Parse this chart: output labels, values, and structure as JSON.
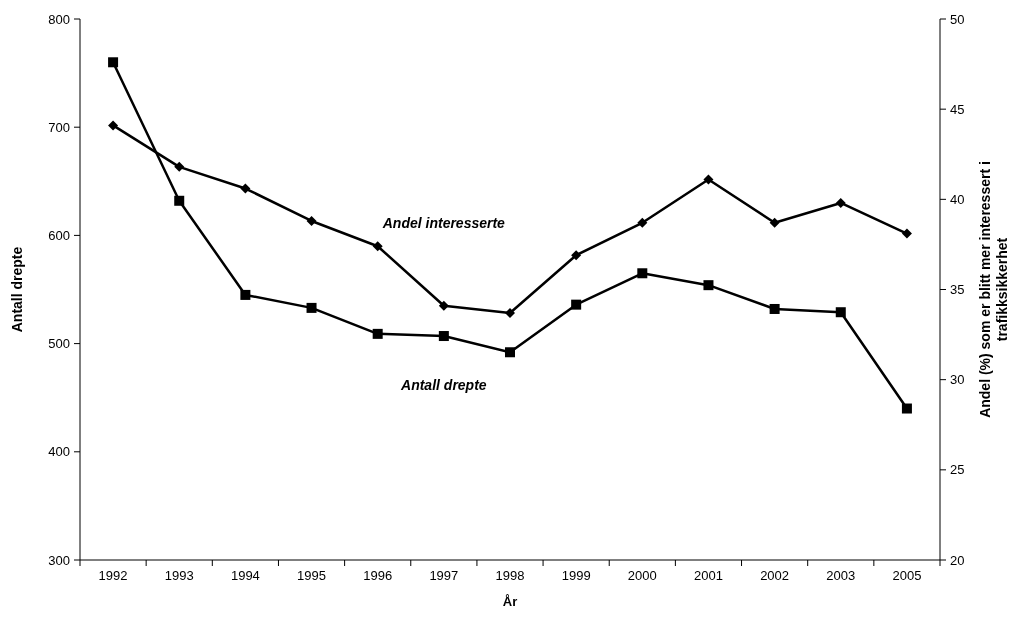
{
  "chart_data": {
    "type": "line",
    "xlabel": "År",
    "ylabel": "Antall drepte",
    "y2label": "Andel (%) som er blitt mer interessert i trafikksikkerhet",
    "categories": [
      "1992",
      "1993",
      "1994",
      "1995",
      "1996",
      "1997",
      "1998",
      "1999",
      "2000",
      "2001",
      "2002",
      "2003",
      "2005"
    ],
    "series": [
      {
        "name": "Antall drepte",
        "color": "#000000",
        "marker": "square",
        "values": [
          760,
          632,
          545,
          533,
          509,
          507,
          492,
          536,
          565,
          554,
          532,
          529,
          440
        ]
      },
      {
        "name": "Andel interesserte",
        "color": "#000000",
        "marker": "diamond",
        "axis": "y2",
        "values": [
          44.1,
          41.8,
          40.6,
          38.8,
          37.4,
          34.1,
          33.7,
          36.9,
          38.7,
          41.1,
          38.7,
          39.8,
          38.1
        ]
      }
    ],
    "ylim": [
      300,
      800
    ],
    "yticks": [
      300,
      400,
      500,
      600,
      700,
      800
    ],
    "y2lim": [
      20,
      50
    ],
    "y2ticks": [
      20,
      25,
      30,
      35,
      40,
      45,
      50
    ],
    "grid": false,
    "legend": false,
    "line_style": "solid"
  }
}
